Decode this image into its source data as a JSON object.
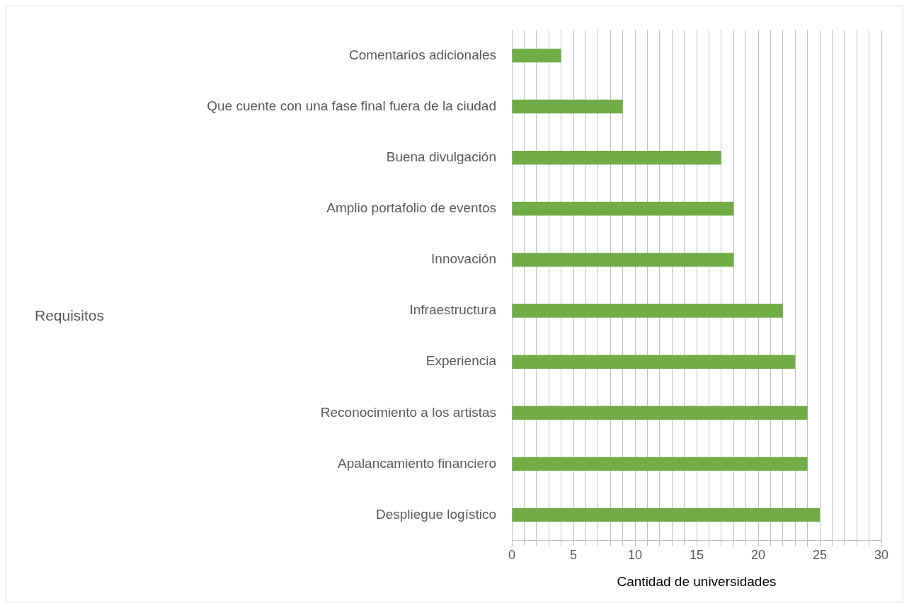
{
  "chart_data": {
    "type": "bar",
    "orientation": "horizontal",
    "annotations": [
      "Requisitos"
    ],
    "xlabel": "Cantidad de universidades",
    "categories": [
      "Comentarios adicionales",
      "Que cuente con una fase final fuera de la ciudad",
      "Buena divulgación",
      "Amplio portafolio de eventos",
      "Innovación",
      "Infraestructura",
      "Experiencia",
      "Reconocimiento a los artistas",
      "Apalancamiento financiero",
      "Despliegue logístico"
    ],
    "values": [
      4,
      9,
      17,
      18,
      18,
      22,
      23,
      24,
      24,
      25
    ],
    "color": "#70ad47",
    "xlim": [
      0,
      30
    ],
    "xticks": [
      0,
      {
        "value": 1,
        "label": null
      },
      {
        "value": 2,
        "label": null
      },
      {
        "value": 3,
        "label": null
      },
      {
        "value": 4,
        "label": null
      },
      5,
      {
        "value": 6,
        "label": null
      },
      {
        "value": 7,
        "label": null
      },
      {
        "value": 8,
        "label": null
      },
      {
        "value": 9,
        "label": null
      },
      10,
      {
        "value": 11,
        "label": null
      },
      {
        "value": 12,
        "label": null
      },
      {
        "value": 13,
        "label": null
      },
      {
        "value": 14,
        "label": null
      },
      15,
      {
        "value": 16,
        "label": null
      },
      {
        "value": 17,
        "label": null
      },
      {
        "value": 18,
        "label": null
      },
      {
        "value": 19,
        "label": null
      },
      20,
      {
        "value": 21,
        "label": null
      },
      {
        "value": 22,
        "label": null
      },
      {
        "value": 23,
        "label": null
      },
      {
        "value": 24,
        "label": null
      },
      25,
      {
        "value": 26,
        "label": null
      },
      {
        "value": 27,
        "label": null
      },
      {
        "value": 28,
        "label": null
      },
      {
        "value": 29,
        "label": null
      },
      30
    ],
    "grid": "x",
    "legend": false
  }
}
